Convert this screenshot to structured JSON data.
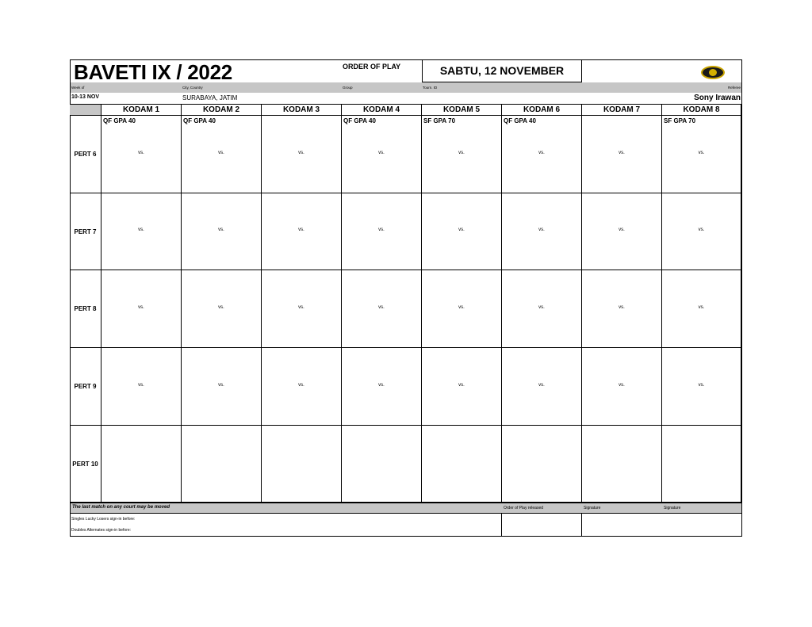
{
  "header": {
    "title": "BAVETI IX / 2022",
    "order_of_play": "ORDER OF PLAY",
    "date": "SABTU, 12 NOVEMBER",
    "labels": {
      "week_of": "Week of",
      "city": "City, Country",
      "group": "Group",
      "tourn_id": "Tourn. ID",
      "referee": "Referee"
    },
    "values": {
      "week_of": "10-13 NOV",
      "city": "SURABAYA, JATIM",
      "referee": "Sony Irawan"
    }
  },
  "courts": [
    "KODAM 1",
    "KODAM 2",
    "KODAM 3",
    "KODAM 4",
    "KODAM 5",
    "KODAM 6",
    "KODAM 7",
    "KODAM 8"
  ],
  "rows": [
    {
      "label": "PERT 6",
      "events": [
        "QF GPA 40",
        "QF GPA 40",
        "",
        "QF GPA 40",
        "SF GPA 70",
        "QF GPA 40",
        "",
        "SF GPA 70"
      ],
      "vs": [
        "vs.",
        "vs.",
        "vs.",
        "vs.",
        "vs.",
        "vs.",
        "vs.",
        "vs."
      ]
    },
    {
      "label": "PERT 7",
      "events": [
        "",
        "",
        "",
        "",
        "",
        "",
        "",
        ""
      ],
      "vs": [
        "vs.",
        "vs.",
        "vs.",
        "vs.",
        "vs.",
        "vs.",
        "vs.",
        "vs."
      ]
    },
    {
      "label": "PERT 8",
      "events": [
        "",
        "",
        "",
        "",
        "",
        "",
        "",
        ""
      ],
      "vs": [
        "vs.",
        "vs.",
        "vs.",
        "vs.",
        "vs.",
        "vs.",
        "vs.",
        "vs."
      ]
    },
    {
      "label": "PERT 9",
      "events": [
        "",
        "",
        "",
        "",
        "",
        "",
        "",
        ""
      ],
      "vs": [
        "vs.",
        "vs.",
        "vs.",
        "vs.",
        "vs.",
        "vs.",
        "vs.",
        "vs."
      ]
    },
    {
      "label": "PERT 10",
      "events": [
        "",
        "",
        "",
        "",
        "",
        "",
        "",
        ""
      ],
      "vs": [
        "",
        "",
        "",
        "",
        "",
        "",
        "",
        ""
      ]
    }
  ],
  "footer": {
    "note": "The last match on any court may be moved",
    "released": "Order of Play released",
    "signature1": "Signature",
    "signature2": "Signature",
    "singles": "Singles Lucky Losers sign-in before:",
    "doubles": "Doubles Alternates sign-in before:"
  }
}
